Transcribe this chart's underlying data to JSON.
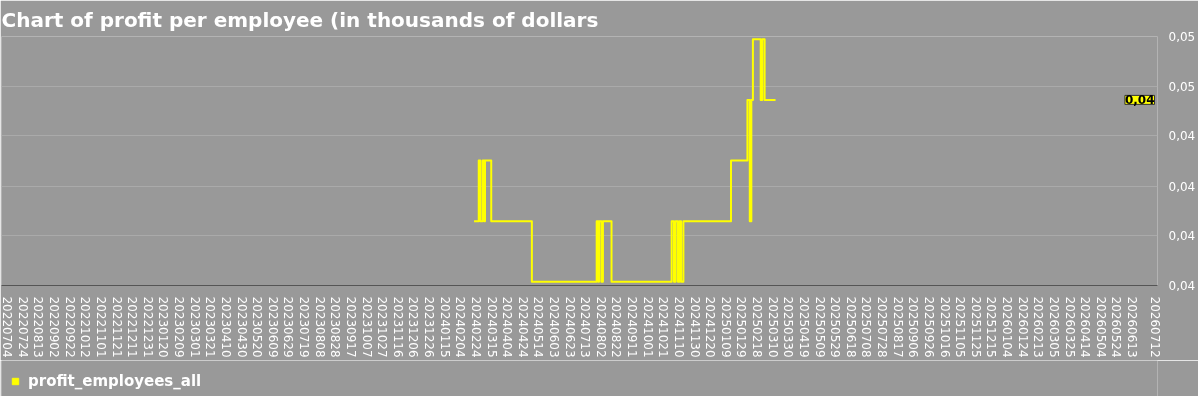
{
  "chart_data": {
    "type": "step",
    "title": "Chart of profit per employee (in thousands of dollars",
    "x": [
      "2024-02-21",
      "2024-02-27",
      "2024-02-29",
      "2024-03-03",
      "2024-03-05",
      "2024-03-06",
      "2024-03-14",
      "2024-05-05",
      "2024-07-27",
      "2024-07-29",
      "2024-07-30",
      "2024-08-02",
      "2024-08-04",
      "2024-08-15",
      "2024-10-31",
      "2024-11-03",
      "2024-11-05",
      "2024-11-08",
      "2024-11-10",
      "2024-11-12",
      "2024-11-15",
      "2025-01-15",
      "2025-02-05",
      "2025-02-08",
      "2025-02-10",
      "2025-02-12",
      "2025-02-22",
      "2025-02-24",
      "2025-02-27",
      "2025-03-13"
    ],
    "series": [
      {
        "name": "profit_employees_all",
        "color": "#ffff00",
        "values": [
          0.0408,
          0.0428,
          0.0408,
          0.0428,
          0.0408,
          0.0428,
          0.0408,
          0.0388,
          0.0408,
          0.0388,
          0.0408,
          0.0388,
          0.0408,
          0.0388,
          0.0408,
          0.0388,
          0.0408,
          0.0388,
          0.0408,
          0.0388,
          0.0408,
          0.0428,
          0.0448,
          0.0408,
          0.0448,
          0.0468,
          0.0448,
          0.0468,
          0.0448,
          0.0448
        ]
      }
    ],
    "ylim": [
      0.03868,
      0.04689
    ],
    "yticks": [
      {
        "value": 0.03868,
        "label": "0,04"
      },
      {
        "value": 0.04032,
        "label": "0,04"
      },
      {
        "value": 0.04196,
        "label": "0,04"
      },
      {
        "value": 0.04361,
        "label": "0,04"
      },
      {
        "value": 0.04525,
        "label": "0,05"
      },
      {
        "value": 0.04689,
        "label": "0,05"
      }
    ],
    "xlim": [
      "2022-06-26",
      "2026-07-15"
    ],
    "xticks": [
      {
        "value": "2022-07-04",
        "label": "20220704"
      },
      {
        "value": "2022-07-24",
        "label": "20220724"
      },
      {
        "value": "2022-08-13",
        "label": "20220813"
      },
      {
        "value": "2022-09-02",
        "label": "20220902"
      },
      {
        "value": "2022-09-22",
        "label": "20220922"
      },
      {
        "value": "2022-10-12",
        "label": "20221012"
      },
      {
        "value": "2022-11-01",
        "label": "20221101"
      },
      {
        "value": "2022-11-21",
        "label": "20221121"
      },
      {
        "value": "2022-12-11",
        "label": "20221211"
      },
      {
        "value": "2022-12-31",
        "label": "20221231"
      },
      {
        "value": "2023-01-20",
        "label": "20230120"
      },
      {
        "value": "2023-02-09",
        "label": "20230209"
      },
      {
        "value": "2023-03-01",
        "label": "20230301"
      },
      {
        "value": "2023-03-21",
        "label": "20230321"
      },
      {
        "value": "2023-04-10",
        "label": "20230410"
      },
      {
        "value": "2023-04-30",
        "label": "20230430"
      },
      {
        "value": "2023-05-20",
        "label": "20230520"
      },
      {
        "value": "2023-06-09",
        "label": "20230609"
      },
      {
        "value": "2023-06-29",
        "label": "20230629"
      },
      {
        "value": "2023-07-19",
        "label": "20230719"
      },
      {
        "value": "2023-08-08",
        "label": "20230808"
      },
      {
        "value": "2023-08-28",
        "label": "20230828"
      },
      {
        "value": "2023-09-17",
        "label": "20230917"
      },
      {
        "value": "2023-10-07",
        "label": "20231007"
      },
      {
        "value": "2023-10-27",
        "label": "20231027"
      },
      {
        "value": "2023-11-16",
        "label": "20231116"
      },
      {
        "value": "2023-12-06",
        "label": "20231206"
      },
      {
        "value": "2023-12-26",
        "label": "20231226"
      },
      {
        "value": "2024-01-15",
        "label": "20240115"
      },
      {
        "value": "2024-02-04",
        "label": "20240204"
      },
      {
        "value": "2024-02-24",
        "label": "20240224"
      },
      {
        "value": "2024-03-15",
        "label": "20240315"
      },
      {
        "value": "2024-04-04",
        "label": "20240404"
      },
      {
        "value": "2024-04-24",
        "label": "20240424"
      },
      {
        "value": "2024-05-14",
        "label": "20240514"
      },
      {
        "value": "2024-06-03",
        "label": "20240603"
      },
      {
        "value": "2024-06-23",
        "label": "20240623"
      },
      {
        "value": "2024-07-13",
        "label": "20240713"
      },
      {
        "value": "2024-08-02",
        "label": "20240802"
      },
      {
        "value": "2024-08-22",
        "label": "20240822"
      },
      {
        "value": "2024-09-11",
        "label": "20240911"
      },
      {
        "value": "2024-10-01",
        "label": "20241001"
      },
      {
        "value": "2024-10-21",
        "label": "20241021"
      },
      {
        "value": "2024-11-10",
        "label": "20241110"
      },
      {
        "value": "2024-11-30",
        "label": "20241130"
      },
      {
        "value": "2024-12-20",
        "label": "20241220"
      },
      {
        "value": "2025-01-09",
        "label": "20250109"
      },
      {
        "value": "2025-01-29",
        "label": "20250129"
      },
      {
        "value": "2025-02-18",
        "label": "20250218"
      },
      {
        "value": "2025-03-10",
        "label": "20250310"
      },
      {
        "value": "2025-03-30",
        "label": "20250330"
      },
      {
        "value": "2025-04-19",
        "label": "20250419"
      },
      {
        "value": "2025-05-09",
        "label": "20250509"
      },
      {
        "value": "2025-05-29",
        "label": "20250529"
      },
      {
        "value": "2025-06-18",
        "label": "20250618"
      },
      {
        "value": "2025-07-08",
        "label": "20250708"
      },
      {
        "value": "2025-07-28",
        "label": "20250728"
      },
      {
        "value": "2025-08-17",
        "label": "20250817"
      },
      {
        "value": "2025-09-06",
        "label": "20250906"
      },
      {
        "value": "2025-09-26",
        "label": "20250926"
      },
      {
        "value": "2025-10-16",
        "label": "20251016"
      },
      {
        "value": "2025-11-05",
        "label": "20251105"
      },
      {
        "value": "2025-11-25",
        "label": "20251125"
      },
      {
        "value": "2025-12-15",
        "label": "20251215"
      },
      {
        "value": "2026-01-04",
        "label": "20260104"
      },
      {
        "value": "2026-01-24",
        "label": "20260124"
      },
      {
        "value": "2026-02-13",
        "label": "20260213"
      },
      {
        "value": "2026-03-05",
        "label": "20260305"
      },
      {
        "value": "2026-03-25",
        "label": "20260325"
      },
      {
        "value": "2026-04-14",
        "label": "20260414"
      },
      {
        "value": "2026-05-04",
        "label": "20260504"
      },
      {
        "value": "2026-05-24",
        "label": "20260524"
      },
      {
        "value": "2026-06-13",
        "label": "20260613"
      },
      {
        "value": "2026-07-12",
        "label": "20260712"
      }
    ],
    "annotations": [
      {
        "text": "0,04",
        "y": 0.0448
      }
    ],
    "grid": "y",
    "legend": "bottom left"
  }
}
